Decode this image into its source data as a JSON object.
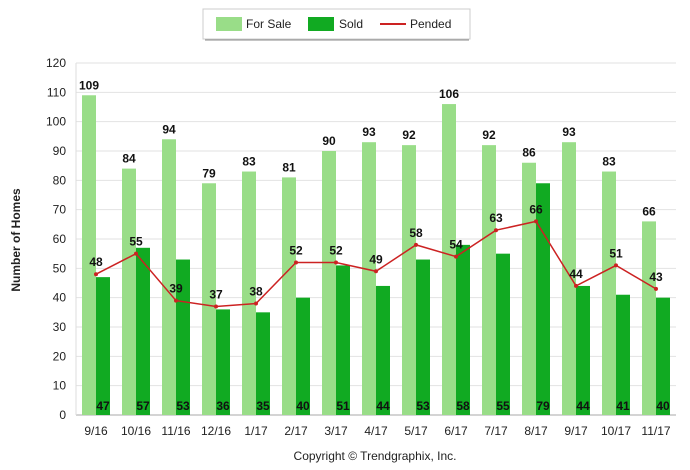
{
  "chart_data": {
    "type": "bar",
    "ylabel": "Number of Homes",
    "ylim": [
      0,
      120
    ],
    "yticks": [
      0,
      10,
      20,
      30,
      40,
      50,
      60,
      70,
      80,
      90,
      100,
      110,
      120
    ],
    "grid": true,
    "legend_position": "top-center",
    "categories": [
      "9/16",
      "10/16",
      "11/16",
      "12/16",
      "1/17",
      "2/17",
      "3/17",
      "4/17",
      "5/17",
      "6/17",
      "7/17",
      "8/17",
      "9/17",
      "10/17",
      "11/17"
    ],
    "series": [
      {
        "name": "For Sale",
        "kind": "bar",
        "color": "#99dd88",
        "values": [
          109,
          84,
          94,
          79,
          83,
          81,
          90,
          93,
          92,
          106,
          92,
          86,
          93,
          83,
          66
        ]
      },
      {
        "name": "Sold",
        "kind": "bar",
        "color": "#11aa22",
        "values": [
          47,
          57,
          53,
          36,
          35,
          40,
          51,
          44,
          53,
          58,
          55,
          79,
          44,
          41,
          40
        ]
      },
      {
        "name": "Pended",
        "kind": "line",
        "color": "#cc2222",
        "values": [
          48,
          55,
          39,
          37,
          38,
          52,
          52,
          49,
          58,
          54,
          63,
          66,
          44,
          51,
          43
        ]
      }
    ]
  },
  "copyright": "Copyright © Trendgraphix, Inc."
}
